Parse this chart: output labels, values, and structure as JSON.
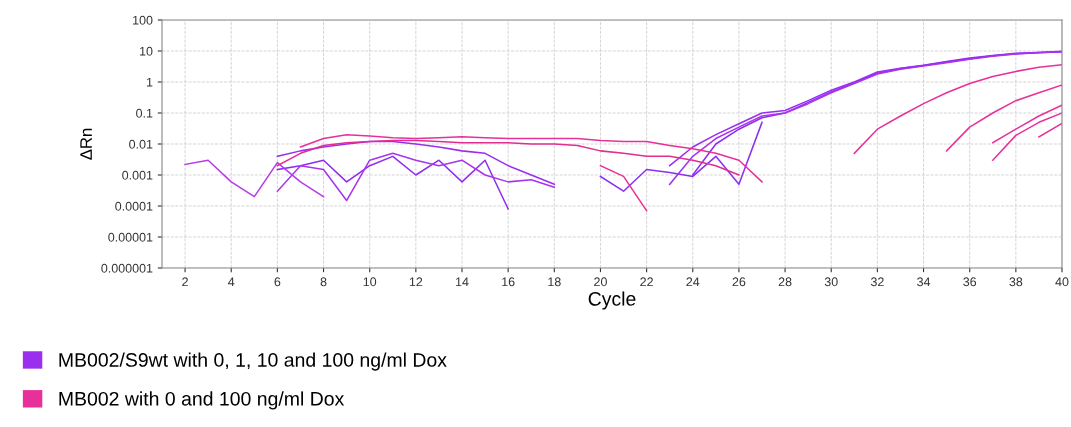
{
  "chart_data": {
    "type": "line",
    "xlabel": "Cycle",
    "ylabel": "ΔRn",
    "log": true,
    "grid": true,
    "legend": "bottom",
    "marker": "none",
    "line_style": "solid",
    "xlim": [
      1,
      40
    ],
    "xticks": [
      2,
      4,
      6,
      8,
      10,
      12,
      14,
      16,
      18,
      20,
      22,
      24,
      26,
      28,
      30,
      32,
      34,
      36,
      38,
      40
    ],
    "ylim": [
      1e-06,
      100
    ],
    "yticks": [
      {
        "value": 1e-06,
        "label": "0.000001"
      },
      {
        "value": 1e-05,
        "label": "0.00001"
      },
      {
        "value": 0.0001,
        "label": "0.0001"
      },
      {
        "value": 0.001,
        "label": "0.001"
      },
      {
        "value": 0.01,
        "label": "0.01"
      },
      {
        "value": 0.1,
        "label": "0.1"
      },
      {
        "value": 1,
        "label": "1"
      },
      {
        "value": 10,
        "label": "10"
      },
      {
        "value": 100,
        "label": "100"
      }
    ],
    "series": [
      {
        "name": "MB002/S9wt with 0, 1, 10 and 100 ng/ml Dox",
        "color": "#9a2ff0",
        "x": [
          6,
          7,
          8,
          9,
          10,
          11,
          12,
          13,
          14,
          15,
          16,
          17,
          18,
          19,
          23,
          24,
          25,
          26,
          27,
          28,
          29,
          30,
          31,
          32,
          33,
          34,
          35,
          36,
          37,
          38,
          39,
          40
        ],
        "values": [
          0.004,
          0.006,
          0.008,
          0.01,
          0.012,
          0.012,
          0.01,
          0.008,
          0.006,
          0.005,
          0.002,
          0.001,
          0.0005,
          null,
          0.002,
          0.008,
          0.02,
          0.045,
          0.1,
          0.12,
          0.25,
          0.54,
          1.0,
          2.1,
          2.8,
          3.5,
          4.6,
          5.9,
          7.2,
          8.5,
          9.0,
          9.3
        ]
      },
      {
        "color": "#8f2cf2",
        "x": [
          6,
          7,
          8,
          9,
          10,
          11,
          12,
          13,
          14,
          15,
          16,
          17,
          18,
          19,
          24,
          25,
          26,
          27,
          28,
          29,
          30,
          31,
          32,
          33,
          34,
          35,
          36,
          37,
          38,
          39,
          40
        ],
        "values": [
          0.0015,
          0.002,
          0.003,
          0.0006,
          0.002,
          0.004,
          0.001,
          0.003,
          0.0006,
          0.003,
          8e-05,
          null,
          null,
          null,
          0.001,
          0.01,
          0.03,
          0.07,
          0.1,
          0.22,
          0.48,
          0.95,
          1.9,
          2.7,
          3.4,
          4.4,
          5.6,
          7.0,
          8.2,
          9.0,
          9.8
        ]
      },
      {
        "color": "#a834ee",
        "x": [
          6,
          7,
          8,
          9,
          10,
          11,
          12,
          13,
          14,
          15,
          16,
          17,
          18,
          19,
          23,
          24,
          25,
          26,
          27,
          28,
          29,
          30,
          31,
          32,
          33,
          34,
          35,
          36,
          37,
          38,
          39,
          40
        ],
        "values": [
          0.0003,
          0.002,
          0.0015,
          0.00015,
          0.003,
          0.005,
          0.003,
          0.002,
          0.003,
          0.001,
          0.0006,
          0.0007,
          0.0004,
          null,
          0.0005,
          0.004,
          0.015,
          0.035,
          0.08,
          0.1,
          0.2,
          0.45,
          0.9,
          1.8,
          2.6,
          3.3,
          4.2,
          5.4,
          6.8,
          8.0,
          8.8,
          9.5
        ]
      },
      {
        "color": "#b63cea",
        "x": [
          2,
          3,
          4,
          5,
          6,
          7,
          8
        ],
        "values": [
          0.0022,
          0.003,
          0.0006,
          0.0002,
          0.0025,
          0.0006,
          0.0002
        ]
      },
      {
        "color": "#8a30f0",
        "x": [
          20,
          21,
          22,
          23,
          24,
          25,
          26,
          27
        ],
        "values": [
          0.0009,
          0.0003,
          0.0015,
          0.0012,
          0.0009,
          0.004,
          0.0005,
          0.05
        ]
      },
      {
        "name": "MB002 with 0 and 100 ng/ml Dox",
        "color": "#e8309a",
        "x": [
          7,
          8,
          9,
          10,
          11,
          12,
          13,
          14,
          15,
          16,
          17,
          18,
          19,
          20,
          21,
          22,
          23,
          24,
          25,
          26,
          27
        ],
        "values": [
          0.008,
          0.015,
          0.02,
          0.018,
          0.016,
          0.015,
          0.016,
          0.017,
          0.016,
          0.015,
          0.015,
          0.015,
          0.015,
          0.013,
          0.012,
          0.012,
          0.009,
          0.007,
          0.005,
          0.003,
          0.0006
        ]
      },
      {
        "color": "#e02f8e",
        "x": [
          6,
          7,
          8,
          9,
          10,
          11,
          12,
          13,
          14,
          15,
          16,
          17,
          18,
          19,
          20,
          21,
          22,
          23,
          24,
          25,
          26
        ],
        "values": [
          0.002,
          0.005,
          0.009,
          0.011,
          0.012,
          0.013,
          0.013,
          0.012,
          0.011,
          0.011,
          0.011,
          0.01,
          0.01,
          0.009,
          0.006,
          0.005,
          0.004,
          0.004,
          0.003,
          0.002,
          0.001
        ]
      },
      {
        "color": "#e83296",
        "x": [
          20,
          21,
          22
        ],
        "values": [
          0.002,
          0.0009,
          7e-05
        ]
      },
      {
        "color": "#e8309a",
        "x": [
          31,
          32,
          33,
          34,
          35,
          36,
          37,
          38,
          39,
          40
        ],
        "values": [
          0.005,
          0.03,
          0.08,
          0.2,
          0.45,
          0.9,
          1.5,
          2.2,
          3.0,
          3.6
        ]
      },
      {
        "color": "#e8309a",
        "x": [
          35,
          36,
          37,
          38,
          39,
          40
        ],
        "values": [
          0.006,
          0.035,
          0.1,
          0.25,
          0.45,
          0.8
        ]
      },
      {
        "color": "#e8309a",
        "x": [
          37,
          38,
          39,
          40
        ],
        "values": [
          0.003,
          0.019,
          0.05,
          0.1
        ]
      },
      {
        "color": "#e8309a",
        "x": [
          37,
          38,
          39,
          40
        ],
        "values": [
          0.011,
          0.03,
          0.08,
          0.18
        ]
      },
      {
        "color": "#e8309a",
        "x": [
          39,
          40
        ],
        "values": [
          0.017,
          0.046
        ]
      }
    ]
  }
}
